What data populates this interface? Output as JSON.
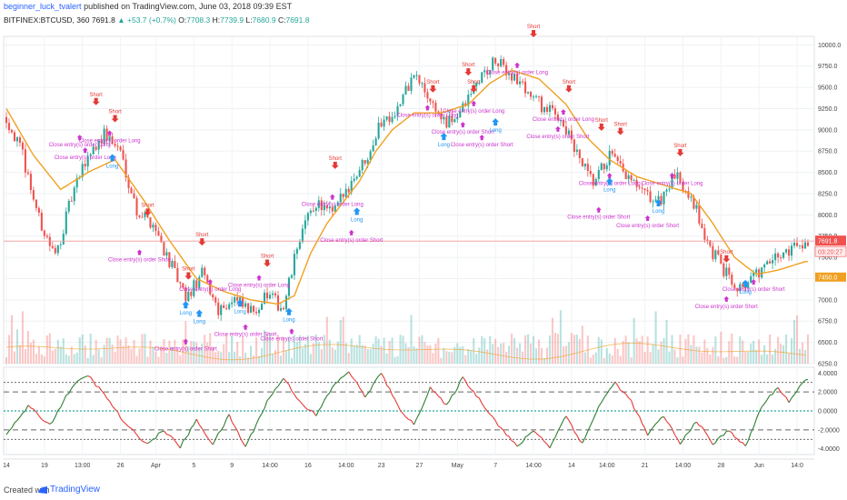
{
  "header": {
    "author": "beginner_luck_tvalert",
    "published": "published on TradingView.com, June 03, 2018 09:39 EST",
    "symbol": "BITFINEX:BTCUSD, 360",
    "last": "7691.8",
    "change": "+53.7 (+0.7%)",
    "o_label": "O:",
    "o": "7708.3",
    "h_label": "H:",
    "h": "7739.9",
    "l_label": "L:",
    "l": "7680.9",
    "c_label": "C:",
    "c": "7691.8"
  },
  "footer": {
    "created": "Created with",
    "brand": "TradingView"
  },
  "colors": {
    "up": "#26a69a",
    "down": "#ef5350",
    "ma": "#f0a020",
    "signal": "#cc33cc",
    "long": "#2196f3",
    "short": "#e53935",
    "osc_up": "#2e7d32",
    "osc_down": "#e53935"
  },
  "chart_data": [
    {
      "type": "candlestick",
      "price_axis_ticks": [
        6250,
        6500,
        6750,
        7000,
        7250,
        7500,
        7750,
        8000,
        8250,
        8500,
        8750,
        9000,
        9250,
        9500,
        9750,
        10000
      ],
      "price_axis_labels": [
        "6250.0",
        "6500.0",
        "6750.0",
        "7000.0",
        "7250.0",
        "7500.0",
        "7750.0",
        "8000.0",
        "8250.0",
        "8500.0",
        "8750.0",
        "9000.0",
        "9250.0",
        "9500.0",
        "9750.0",
        "10000.0"
      ],
      "ylim": [
        6250,
        10100
      ],
      "last_price_label": "7691.8",
      "countdown_label": "03:20:27",
      "ma_price_label": "7450.0",
      "x_tick_labels": [
        "14",
        "19",
        "13:00",
        "26",
        "Apr",
        "5",
        "9",
        "14:00",
        "16",
        "14:00",
        "23",
        "27",
        "May",
        "7",
        "14:00",
        "14",
        "14:00",
        "21",
        "14:00",
        "28",
        "Jun",
        "14:0"
      ],
      "close_path": [
        {
          "i": 0,
          "p": 9150
        },
        {
          "i": 6,
          "p": 8700
        },
        {
          "i": 12,
          "p": 7950
        },
        {
          "i": 18,
          "p": 7500
        },
        {
          "i": 24,
          "p": 8200
        },
        {
          "i": 30,
          "p": 8700
        },
        {
          "i": 36,
          "p": 8950
        },
        {
          "i": 42,
          "p": 8750
        },
        {
          "i": 48,
          "p": 8050
        },
        {
          "i": 54,
          "p": 7900
        },
        {
          "i": 60,
          "p": 7450
        },
        {
          "i": 66,
          "p": 7000
        },
        {
          "i": 72,
          "p": 7300
        },
        {
          "i": 78,
          "p": 6900
        },
        {
          "i": 84,
          "p": 7000
        },
        {
          "i": 90,
          "p": 6850
        },
        {
          "i": 96,
          "p": 7050
        },
        {
          "i": 102,
          "p": 6900
        },
        {
          "i": 108,
          "p": 7750
        },
        {
          "i": 114,
          "p": 8150
        },
        {
          "i": 120,
          "p": 8000
        },
        {
          "i": 126,
          "p": 8350
        },
        {
          "i": 132,
          "p": 8650
        },
        {
          "i": 138,
          "p": 9100
        },
        {
          "i": 144,
          "p": 9250
        },
        {
          "i": 150,
          "p": 9650
        },
        {
          "i": 156,
          "p": 9350
        },
        {
          "i": 162,
          "p": 9050
        },
        {
          "i": 168,
          "p": 9250
        },
        {
          "i": 174,
          "p": 9600
        },
        {
          "i": 180,
          "p": 9800
        },
        {
          "i": 186,
          "p": 9650
        },
        {
          "i": 192,
          "p": 9450
        },
        {
          "i": 198,
          "p": 9250
        },
        {
          "i": 204,
          "p": 9150
        },
        {
          "i": 210,
          "p": 8700
        },
        {
          "i": 216,
          "p": 8350
        },
        {
          "i": 222,
          "p": 8700
        },
        {
          "i": 228,
          "p": 8450
        },
        {
          "i": 234,
          "p": 8250
        },
        {
          "i": 240,
          "p": 8150
        },
        {
          "i": 246,
          "p": 8450
        },
        {
          "i": 252,
          "p": 8250
        },
        {
          "i": 258,
          "p": 7650
        },
        {
          "i": 264,
          "p": 7350
        },
        {
          "i": 270,
          "p": 7150
        },
        {
          "i": 276,
          "p": 7300
        },
        {
          "i": 282,
          "p": 7450
        },
        {
          "i": 288,
          "p": 7600
        },
        {
          "i": 294,
          "p": 7692
        }
      ],
      "ma_path": [
        {
          "i": 0,
          "p": 9250
        },
        {
          "i": 10,
          "p": 8700
        },
        {
          "i": 20,
          "p": 8300
        },
        {
          "i": 30,
          "p": 8500
        },
        {
          "i": 40,
          "p": 8650
        },
        {
          "i": 50,
          "p": 8200
        },
        {
          "i": 60,
          "p": 7700
        },
        {
          "i": 70,
          "p": 7250
        },
        {
          "i": 80,
          "p": 7100
        },
        {
          "i": 90,
          "p": 7000
        },
        {
          "i": 100,
          "p": 6950
        },
        {
          "i": 106,
          "p": 7050
        },
        {
          "i": 112,
          "p": 7550
        },
        {
          "i": 118,
          "p": 7900
        },
        {
          "i": 124,
          "p": 8150
        },
        {
          "i": 130,
          "p": 8400
        },
        {
          "i": 136,
          "p": 8750
        },
        {
          "i": 142,
          "p": 9000
        },
        {
          "i": 150,
          "p": 9200
        },
        {
          "i": 160,
          "p": 9200
        },
        {
          "i": 170,
          "p": 9300
        },
        {
          "i": 178,
          "p": 9550
        },
        {
          "i": 186,
          "p": 9700
        },
        {
          "i": 196,
          "p": 9600
        },
        {
          "i": 206,
          "p": 9300
        },
        {
          "i": 214,
          "p": 8900
        },
        {
          "i": 222,
          "p": 8650
        },
        {
          "i": 232,
          "p": 8450
        },
        {
          "i": 242,
          "p": 8350
        },
        {
          "i": 252,
          "p": 8250
        },
        {
          "i": 260,
          "p": 7900
        },
        {
          "i": 268,
          "p": 7500
        },
        {
          "i": 276,
          "p": 7300
        },
        {
          "i": 284,
          "p": 7350
        },
        {
          "i": 294,
          "p": 7450
        }
      ],
      "signals": [
        {
          "i": 33,
          "p": 9300,
          "kind": "short",
          "label": "Short"
        },
        {
          "i": 40,
          "p": 9100,
          "kind": "short",
          "label": "Short"
        },
        {
          "i": 27,
          "p": 8900,
          "kind": "close",
          "label": "Close entry(s) order Long"
        },
        {
          "i": 29,
          "p": 8750,
          "kind": "close",
          "label": "Close entry(s) order Long"
        },
        {
          "i": 38,
          "p": 8950,
          "kind": "close",
          "label": "Close entry(s) order Long"
        },
        {
          "i": 39,
          "p": 8630,
          "kind": "long",
          "label": "Long"
        },
        {
          "i": 52,
          "p": 8000,
          "kind": "short",
          "label": "Short"
        },
        {
          "i": 49,
          "p": 7550,
          "kind": "close",
          "label": "Close entry(s) order Short"
        },
        {
          "i": 72,
          "p": 7650,
          "kind": "short",
          "label": "Short"
        },
        {
          "i": 67,
          "p": 7250,
          "kind": "short",
          "label": "Short"
        },
        {
          "i": 66,
          "p": 6900,
          "kind": "long",
          "label": "Long"
        },
        {
          "i": 71,
          "p": 6800,
          "kind": "long",
          "label": "Long"
        },
        {
          "i": 75,
          "p": 7200,
          "kind": "close",
          "label": "Close entry(s) order Long"
        },
        {
          "i": 93,
          "p": 7250,
          "kind": "close",
          "label": "Close entry(s) order Long"
        },
        {
          "i": 96,
          "p": 7400,
          "kind": "short",
          "label": "Short"
        },
        {
          "i": 86,
          "p": 6920,
          "kind": "long",
          "label": "Long"
        },
        {
          "i": 66,
          "p": 6500,
          "kind": "close",
          "label": "Close entry(s) order Short"
        },
        {
          "i": 88,
          "p": 6670,
          "kind": "close",
          "label": "Close entry(s) order Short"
        },
        {
          "i": 104,
          "p": 6820,
          "kind": "long",
          "label": "Long"
        },
        {
          "i": 105,
          "p": 6620,
          "kind": "close",
          "label": "Close entry(s) order Short"
        },
        {
          "i": 121,
          "p": 8550,
          "kind": "short",
          "label": "Short"
        },
        {
          "i": 120,
          "p": 8200,
          "kind": "close",
          "label": "Close entry(s) order Long"
        },
        {
          "i": 129,
          "p": 8000,
          "kind": "long",
          "label": "Long"
        },
        {
          "i": 127,
          "p": 7780,
          "kind": "close",
          "label": "Close entry(s) order Short"
        },
        {
          "i": 157,
          "p": 9450,
          "kind": "short",
          "label": "Short"
        },
        {
          "i": 155,
          "p": 9250,
          "kind": "close",
          "label": "Close entry(s) order Long"
        },
        {
          "i": 161,
          "p": 8880,
          "kind": "long",
          "label": "Long"
        },
        {
          "i": 168,
          "p": 9050,
          "kind": "close",
          "label": "Close entry(s) order Short"
        },
        {
          "i": 172,
          "p": 9450,
          "kind": "short",
          "label": "Short"
        },
        {
          "i": 172,
          "p": 9300,
          "kind": "close",
          "label": "Close entry(s) order Long"
        },
        {
          "i": 180,
          "p": 9050,
          "kind": "long",
          "label": "Long"
        },
        {
          "i": 175,
          "p": 8900,
          "kind": "close",
          "label": "Close entry(s) order Short"
        },
        {
          "i": 170,
          "p": 9650,
          "kind": "short",
          "label": "Short"
        },
        {
          "i": 188,
          "p": 9750,
          "kind": "close",
          "label": "Close entry(s) order Long"
        },
        {
          "i": 194,
          "p": 10100,
          "kind": "short",
          "label": "Short"
        },
        {
          "i": 207,
          "p": 9450,
          "kind": "short",
          "label": "Short"
        },
        {
          "i": 205,
          "p": 9200,
          "kind": "close",
          "label": "Close entry(s) order Long"
        },
        {
          "i": 203,
          "p": 9000,
          "kind": "close",
          "label": "Close entry(s) order Short"
        },
        {
          "i": 219,
          "p": 9000,
          "kind": "short",
          "label": "Short"
        },
        {
          "i": 226,
          "p": 8950,
          "kind": "short",
          "label": "Short"
        },
        {
          "i": 222,
          "p": 8450,
          "kind": "close",
          "label": "Close entry(s) order Long"
        },
        {
          "i": 222,
          "p": 8350,
          "kind": "long",
          "label": "Long"
        },
        {
          "i": 218,
          "p": 8050,
          "kind": "close",
          "label": "Close entry(s) order Short"
        },
        {
          "i": 240,
          "p": 8100,
          "kind": "long",
          "label": "Long"
        },
        {
          "i": 236,
          "p": 7950,
          "kind": "close",
          "label": "Close entry(s) order Short"
        },
        {
          "i": 248,
          "p": 8700,
          "kind": "short",
          "label": "Short"
        },
        {
          "i": 245,
          "p": 8450,
          "kind": "close",
          "label": "Close entry(s) order Long"
        },
        {
          "i": 265,
          "p": 7450,
          "kind": "short",
          "label": "Short"
        },
        {
          "i": 275,
          "p": 7200,
          "kind": "close",
          "label": "Close entry(s) order Short"
        },
        {
          "i": 272,
          "p": 7150,
          "kind": "long",
          "label": "Long"
        },
        {
          "i": 265,
          "p": 7000,
          "kind": "close",
          "label": "Close entry(s) order Short"
        }
      ]
    },
    {
      "type": "line",
      "name_axis_labels": [
        "4.0000",
        "2.0000",
        "0.0000",
        "-2.0000",
        "-4.0000"
      ],
      "y_ticks": [
        4,
        2,
        0,
        -2,
        -4
      ],
      "ylim": [
        -4.6,
        4.6
      ],
      "levels_dotted": [
        3.0,
        0.0,
        -3.0
      ],
      "levels_dashed": [
        2.0,
        -2.0
      ],
      "zero_line_color": "#26a69a",
      "osc_path": [
        {
          "i": 0,
          "v": -2.5
        },
        {
          "i": 8,
          "v": 0.5
        },
        {
          "i": 16,
          "v": -1.5
        },
        {
          "i": 24,
          "v": 2.5
        },
        {
          "i": 30,
          "v": 3.8
        },
        {
          "i": 38,
          "v": 1.0
        },
        {
          "i": 44,
          "v": -1.5
        },
        {
          "i": 52,
          "v": -3.5
        },
        {
          "i": 58,
          "v": -2.0
        },
        {
          "i": 64,
          "v": -3.8
        },
        {
          "i": 70,
          "v": -1.0
        },
        {
          "i": 76,
          "v": -3.5
        },
        {
          "i": 82,
          "v": -0.5
        },
        {
          "i": 88,
          "v": -3.8
        },
        {
          "i": 96,
          "v": 1.0
        },
        {
          "i": 102,
          "v": 3.5
        },
        {
          "i": 108,
          "v": 1.0
        },
        {
          "i": 114,
          "v": -0.5
        },
        {
          "i": 120,
          "v": 2.5
        },
        {
          "i": 126,
          "v": 4.2
        },
        {
          "i": 132,
          "v": 1.5
        },
        {
          "i": 138,
          "v": 4.0
        },
        {
          "i": 144,
          "v": 0.5
        },
        {
          "i": 150,
          "v": -1.5
        },
        {
          "i": 156,
          "v": 2.5
        },
        {
          "i": 162,
          "v": 0.5
        },
        {
          "i": 168,
          "v": 3.5
        },
        {
          "i": 176,
          "v": 0.5
        },
        {
          "i": 182,
          "v": -1.8
        },
        {
          "i": 188,
          "v": -3.8
        },
        {
          "i": 194,
          "v": -2.0
        },
        {
          "i": 200,
          "v": -3.8
        },
        {
          "i": 206,
          "v": -0.5
        },
        {
          "i": 212,
          "v": -3.5
        },
        {
          "i": 218,
          "v": 0.5
        },
        {
          "i": 224,
          "v": 3.0
        },
        {
          "i": 230,
          "v": 1.0
        },
        {
          "i": 236,
          "v": -2.5
        },
        {
          "i": 242,
          "v": -0.5
        },
        {
          "i": 248,
          "v": -3.5
        },
        {
          "i": 254,
          "v": -1.0
        },
        {
          "i": 260,
          "v": -3.5
        },
        {
          "i": 266,
          "v": -2.0
        },
        {
          "i": 272,
          "v": -3.8
        },
        {
          "i": 278,
          "v": 0.5
        },
        {
          "i": 284,
          "v": 2.5
        },
        {
          "i": 288,
          "v": 1.0
        },
        {
          "i": 294,
          "v": 3.2
        }
      ]
    }
  ]
}
